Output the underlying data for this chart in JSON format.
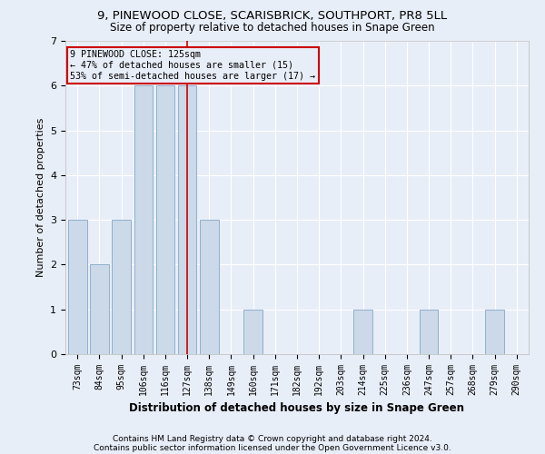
{
  "title1": "9, PINEWOOD CLOSE, SCARISBRICK, SOUTHPORT, PR8 5LL",
  "title2": "Size of property relative to detached houses in Snape Green",
  "xlabel": "Distribution of detached houses by size in Snape Green",
  "ylabel": "Number of detached properties",
  "categories": [
    "73sqm",
    "84sqm",
    "95sqm",
    "106sqm",
    "116sqm",
    "127sqm",
    "138sqm",
    "149sqm",
    "160sqm",
    "171sqm",
    "182sqm",
    "192sqm",
    "203sqm",
    "214sqm",
    "225sqm",
    "236sqm",
    "247sqm",
    "257sqm",
    "268sqm",
    "279sqm",
    "290sqm"
  ],
  "values": [
    3,
    2,
    3,
    6,
    6,
    6,
    3,
    0,
    1,
    0,
    0,
    0,
    0,
    1,
    0,
    0,
    1,
    0,
    0,
    1,
    0
  ],
  "bar_color": "#ccd9e8",
  "bar_edge_color": "#8fb0cc",
  "highlight_index": 5,
  "highlight_line_color": "#cc0000",
  "ylim": [
    0,
    7
  ],
  "yticks": [
    0,
    1,
    2,
    3,
    4,
    5,
    6,
    7
  ],
  "annotation_text": "9 PINEWOOD CLOSE: 125sqm\n← 47% of detached houses are smaller (15)\n53% of semi-detached houses are larger (17) →",
  "annotation_box_color": "#cc0000",
  "footer1": "Contains HM Land Registry data © Crown copyright and database right 2024.",
  "footer2": "Contains public sector information licensed under the Open Government Licence v3.0.",
  "background_color": "#e8eef8",
  "grid_color": "#ffffff",
  "title_fontsize": 9.5,
  "subtitle_fontsize": 8.5,
  "bar_width": 0.85,
  "xlabel_fontsize": 8.5,
  "ylabel_fontsize": 8,
  "tick_fontsize": 7,
  "footer_fontsize": 6.5
}
